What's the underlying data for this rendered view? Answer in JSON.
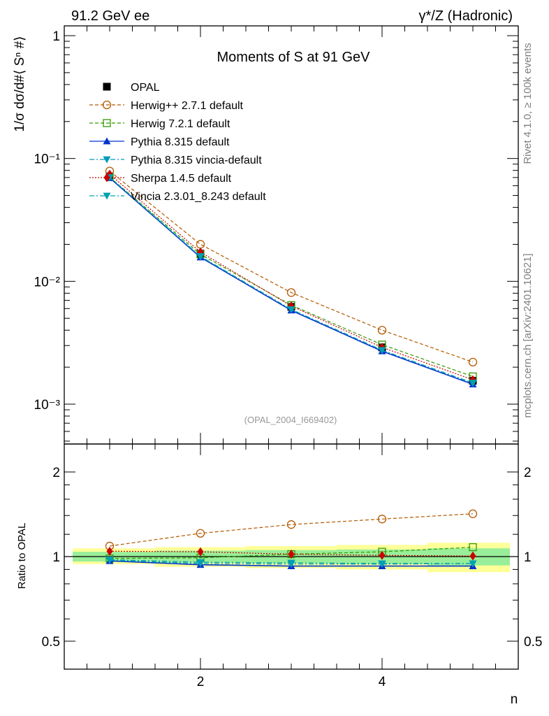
{
  "header": {
    "left": "91.2 GeV ee",
    "right": "γ*/Z (Hadronic)"
  },
  "side": {
    "rivet": "Rivet 4.1.0, ≥ 100k events",
    "mcplots": "mcplots.cern.ch [arXiv:2401.10621]"
  },
  "chart_data": [
    {
      "type": "line",
      "panel": "main",
      "title": "Moments of S at 91 GeV",
      "ylabel": "1/σ  dσ/d#⟨ Sⁿ #⟩",
      "xlabel": "",
      "yscale": "log",
      "ylim": [
        0.0005,
        1.3
      ],
      "xlim": [
        0.5,
        5.5
      ],
      "ytick_labels": [
        "10⁻³",
        "10⁻²",
        "10⁻¹",
        "1"
      ],
      "x": [
        1,
        2,
        3,
        4,
        5
      ],
      "watermark": "(OPAL_2004_I669402)",
      "series": [
        {
          "name": "OPAL",
          "color": "#000000",
          "marker": "square-filled",
          "dash": "",
          "values": [
            0.0715,
            0.0168,
            0.0062,
            0.0029,
            0.00155
          ]
        },
        {
          "name": "Herwig++ 2.7.1 default",
          "color": "#b35900",
          "marker": "circle-open",
          "dash": "5,3",
          "values": [
            0.079,
            0.02,
            0.0081,
            0.004,
            0.0022
          ]
        },
        {
          "name": "Herwig 7.2.1 default",
          "color": "#339900",
          "marker": "square-open",
          "dash": "5,3",
          "values": [
            0.0705,
            0.0166,
            0.0064,
            0.00305,
            0.00168
          ]
        },
        {
          "name": "Pythia 8.315 default",
          "color": "#0033cc",
          "marker": "triangle-up",
          "dash": "",
          "values": [
            0.0695,
            0.0157,
            0.0058,
            0.0027,
            0.00145
          ]
        },
        {
          "name": "Pythia 8.315 vincia-default",
          "color": "#0099bb",
          "marker": "triangle-down",
          "dash": "7,3,2,3",
          "values": [
            0.0702,
            0.0159,
            0.0059,
            0.00275,
            0.00148
          ]
        },
        {
          "name": "Sherpa 1.4.5 default",
          "color": "#cc0000",
          "marker": "diamond",
          "dash": "2,2",
          "values": [
            0.0745,
            0.0173,
            0.0063,
            0.0029,
            0.00158
          ]
        },
        {
          "name": "Vincia 2.3.01_8.243 default",
          "color": "#00a0b0",
          "marker": "triangle-down",
          "dash": "7,3,2,3",
          "values": [
            0.0702,
            0.016,
            0.0059,
            0.00275,
            0.00149
          ]
        }
      ]
    },
    {
      "type": "line",
      "panel": "ratio",
      "ylabel": "Ratio to OPAL",
      "xlabel": "n",
      "yscale": "log",
      "ylim": [
        0.4,
        2.5
      ],
      "xlim": [
        0.5,
        5.5
      ],
      "ytick_labels": [
        "0.5",
        "1",
        "2"
      ],
      "xtick_labels": [
        "2",
        "4"
      ],
      "x": [
        1,
        2,
        3,
        4,
        5
      ],
      "bands": {
        "outer_color": "#ffff99",
        "inner_color": "#99ee99",
        "outer": [
          [
            0.94,
            1.07
          ],
          [
            0.92,
            1.08
          ],
          [
            0.91,
            1.09
          ],
          [
            0.9,
            1.1
          ],
          [
            0.88,
            1.12
          ]
        ],
        "inner": [
          [
            0.96,
            1.04
          ],
          [
            0.95,
            1.05
          ],
          [
            0.945,
            1.055
          ],
          [
            0.94,
            1.06
          ],
          [
            0.93,
            1.07
          ]
        ]
      },
      "series": [
        {
          "name": "Herwig++ 2.7.1 default",
          "color": "#b35900",
          "marker": "circle-open",
          "dash": "5,3",
          "values": [
            1.09,
            1.21,
            1.3,
            1.36,
            1.42
          ]
        },
        {
          "name": "Herwig 7.2.1 default",
          "color": "#339900",
          "marker": "square-open",
          "dash": "5,3",
          "values": [
            0.985,
            0.99,
            1.02,
            1.04,
            1.08
          ]
        },
        {
          "name": "Pythia 8.315 default",
          "color": "#0033cc",
          "marker": "triangle-up",
          "dash": "",
          "values": [
            0.965,
            0.935,
            0.925,
            0.925,
            0.925
          ]
        },
        {
          "name": "Pythia 8.315 vincia-default",
          "color": "#0099bb",
          "marker": "triangle-down",
          "dash": "7,3,2,3",
          "values": [
            0.97,
            0.945,
            0.94,
            0.94,
            0.945
          ]
        },
        {
          "name": "Sherpa 1.4.5 default",
          "color": "#cc0000",
          "marker": "diamond",
          "dash": "2,2",
          "values": [
            1.045,
            1.04,
            1.02,
            1.01,
            1.005
          ]
        },
        {
          "name": "Vincia 2.3.01_8.243 default",
          "color": "#00a0b0",
          "marker": "triangle-down",
          "dash": "7,3,2,3",
          "values": [
            0.975,
            0.955,
            0.95,
            0.945,
            0.945
          ]
        }
      ]
    }
  ]
}
